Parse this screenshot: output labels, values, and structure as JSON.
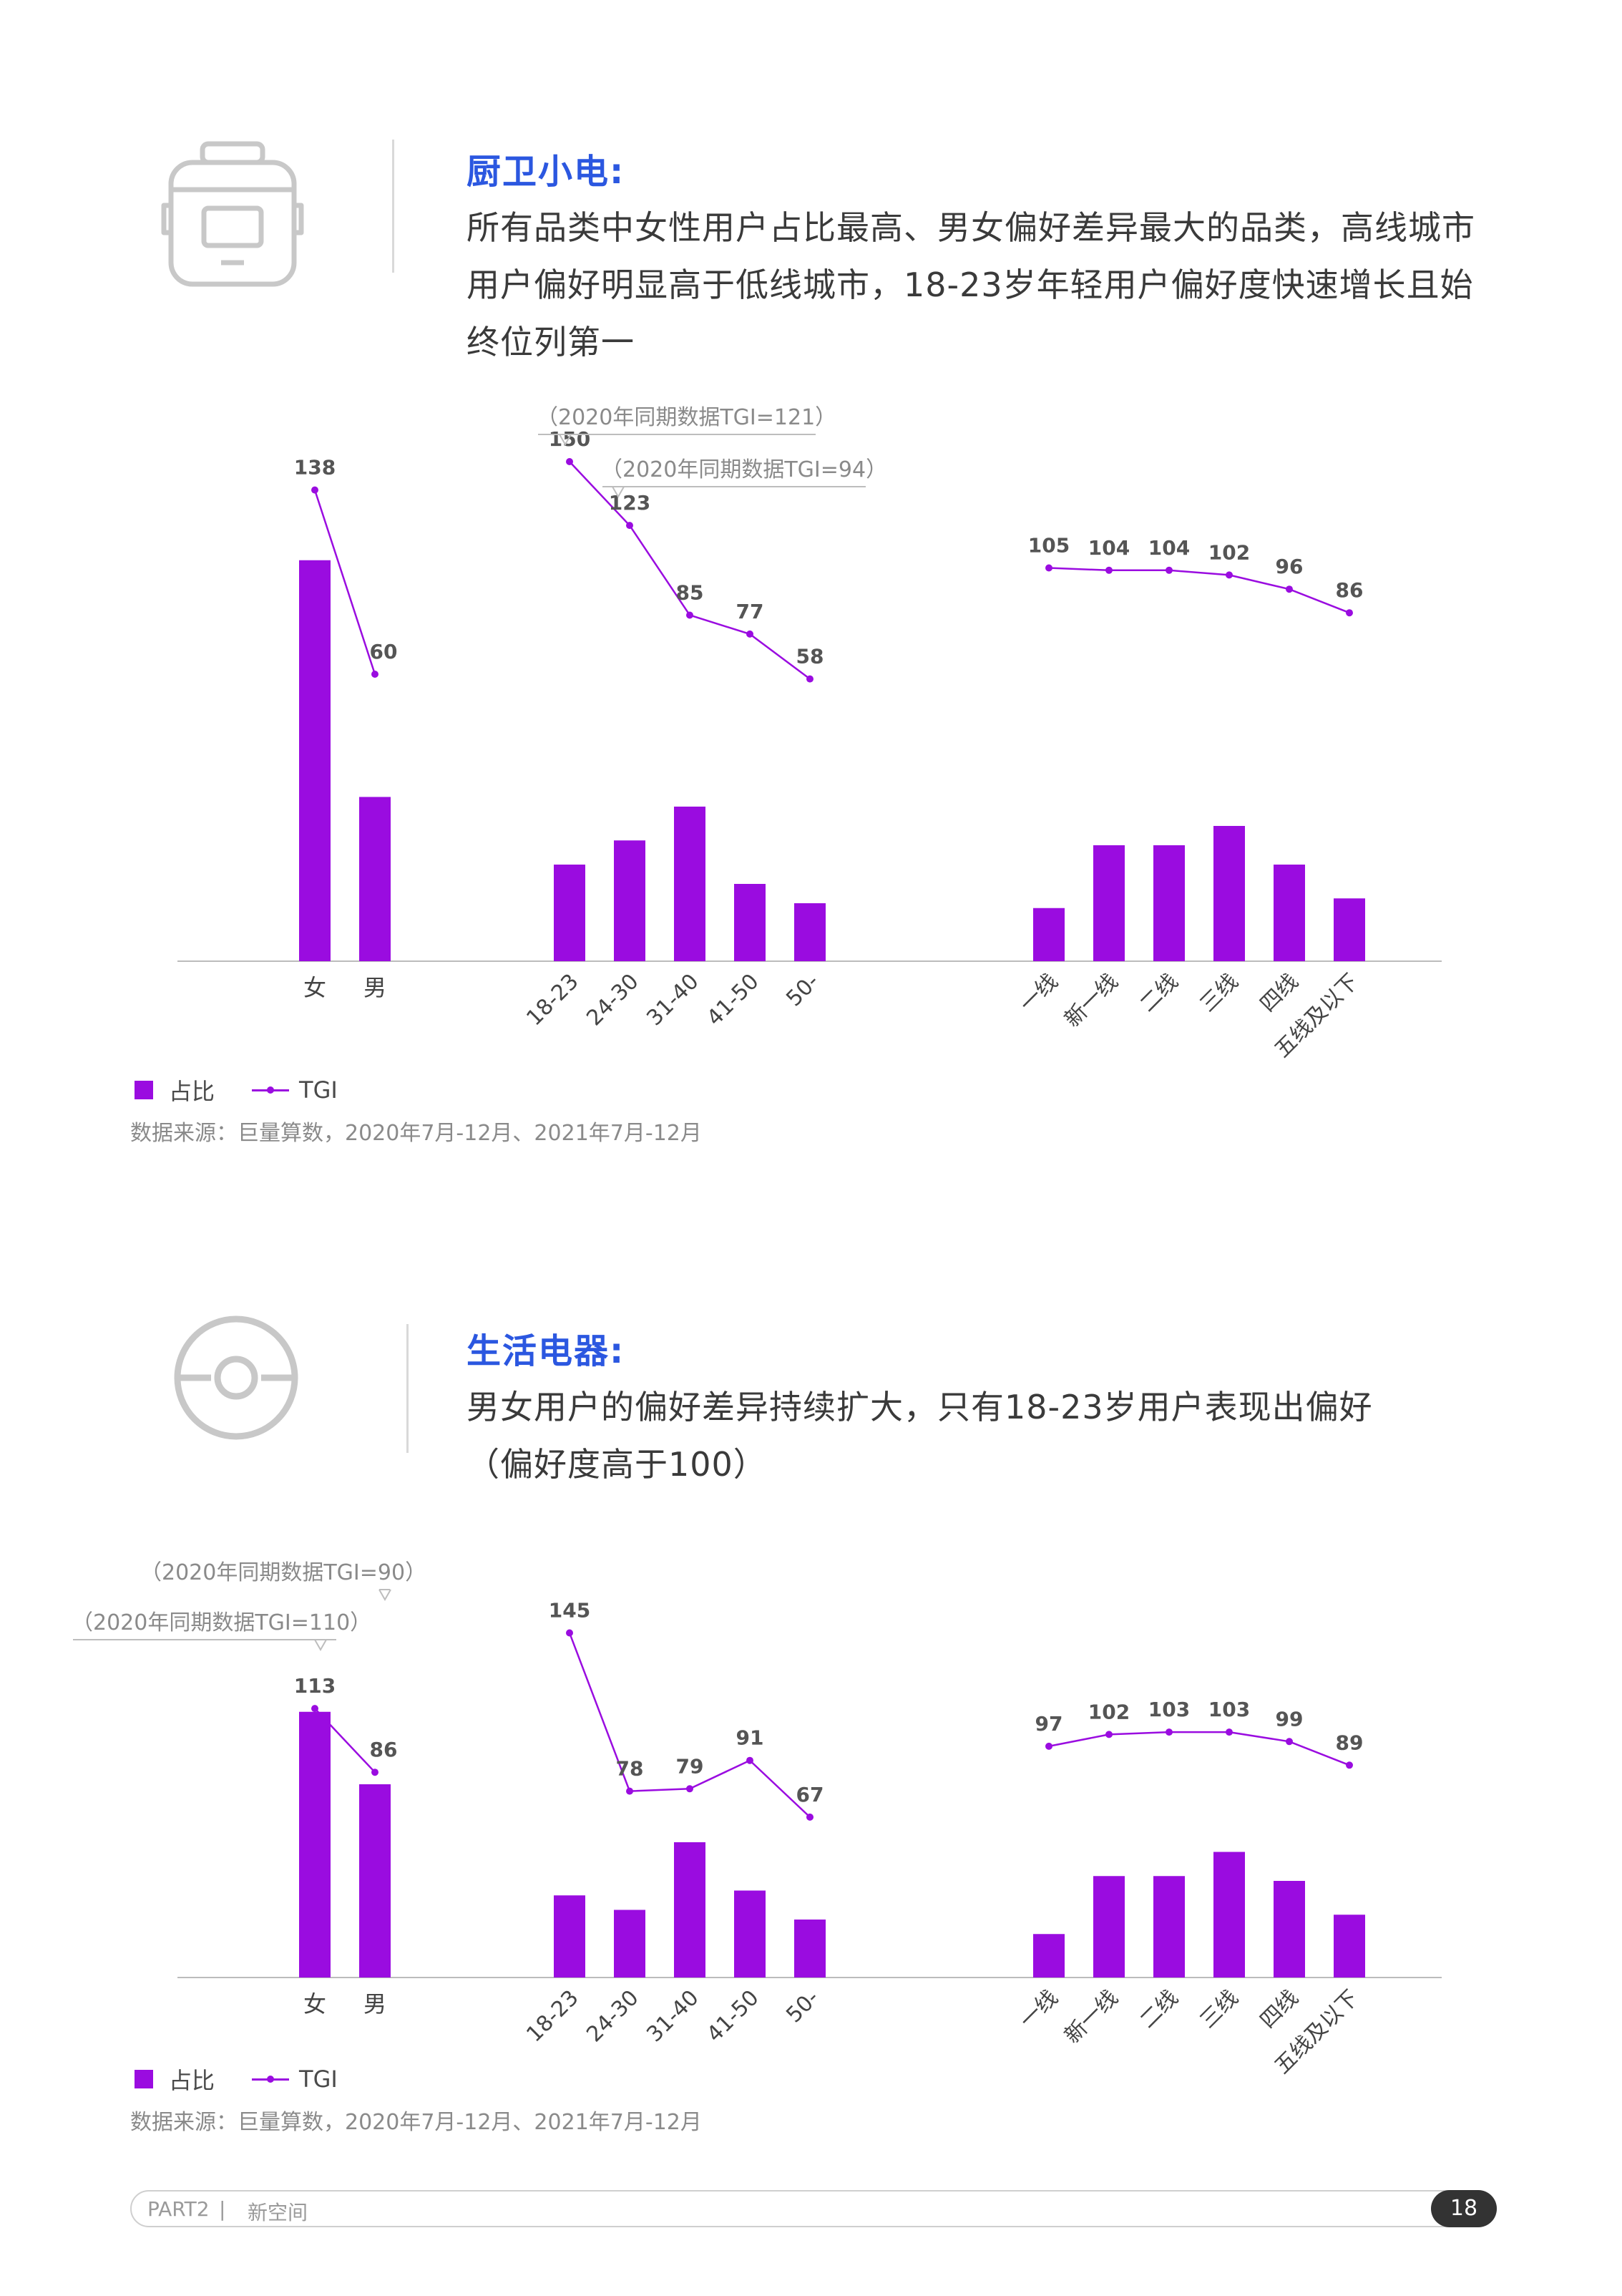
{
  "sections": [
    {
      "title": "厨卫小电:",
      "desc": [
        "所有品类中女性用户占比最高、男女偏好差异最大的品类，高线城市",
        "用户偏好明显高于低线城市，18-23岁年轻用户偏好度快速增长且始",
        "终位列第一"
      ],
      "icon": "rice-cooker-icon",
      "legend": {
        "bar": "占比",
        "line": "TGI"
      },
      "source": "数据来源：巨量算数，2020年7月-12月、2021年7月-12月"
    },
    {
      "title": "生活电器:",
      "desc": [
        "男女用户的偏好差异持续扩大，只有18-23岁用户表现出偏好",
        "（偏好度高于100）"
      ],
      "icon": "target-circle-icon",
      "legend": {
        "bar": "占比",
        "line": "TGI"
      },
      "source": "数据来源：巨量算数，2020年7月-12月、2021年7月-12月"
    }
  ],
  "chart_data": [
    {
      "type": "bar",
      "title": "",
      "color": "#9a0ce0",
      "groups": [
        {
          "name": "性别",
          "categories": [
            "女",
            "男"
          ],
          "share": [
            83,
            34
          ],
          "tgi": [
            138,
            60
          ]
        },
        {
          "name": "年龄",
          "categories": [
            "18-23",
            "24-30",
            "31-40",
            "41-50",
            "50-"
          ],
          "share": [
            20,
            25,
            32,
            16,
            12
          ],
          "tgi": [
            150,
            123,
            85,
            77,
            58
          ]
        },
        {
          "name": "城市线级",
          "categories": [
            "一线",
            "新一线",
            "二线",
            "三线",
            "四线",
            "五线及以下"
          ],
          "share": [
            11,
            24,
            24,
            28,
            20,
            13
          ],
          "tgi": [
            105,
            104,
            104,
            102,
            96,
            86
          ]
        }
      ],
      "annotations": [
        {
          "text": "（2020年同期数据TGI=121）",
          "group": 1,
          "index": 0
        },
        {
          "text": "（2020年同期数据TGI=94）",
          "group": 1,
          "index": 1
        }
      ],
      "series": [
        {
          "name": "占比",
          "type": "bar"
        },
        {
          "name": "TGI",
          "type": "line"
        }
      ]
    },
    {
      "type": "bar",
      "title": "",
      "color": "#9a0ce0",
      "groups": [
        {
          "name": "性别",
          "categories": [
            "女",
            "男"
          ],
          "share": [
            55,
            40
          ],
          "tgi": [
            113,
            86
          ]
        },
        {
          "name": "年龄",
          "categories": [
            "18-23",
            "24-30",
            "31-40",
            "41-50",
            "50-"
          ],
          "share": [
            17,
            14,
            28,
            18,
            12
          ],
          "tgi": [
            145,
            78,
            79,
            91,
            67
          ]
        },
        {
          "name": "城市线级",
          "categories": [
            "一线",
            "新一线",
            "二线",
            "三线",
            "四线",
            "五线及以下"
          ],
          "share": [
            9,
            21,
            21,
            26,
            20,
            13
          ],
          "tgi": [
            97,
            102,
            103,
            103,
            99,
            89
          ]
        }
      ],
      "annotations": [
        {
          "text": "（2020年同期数据TGI=90）",
          "group": 0,
          "index": 1
        },
        {
          "text": "（2020年同期数据TGI=110）",
          "group": 0,
          "index": 0
        }
      ],
      "series": [
        {
          "name": "占比",
          "type": "bar"
        },
        {
          "name": "TGI",
          "type": "line"
        }
      ]
    }
  ],
  "footer": {
    "part": "PART2",
    "separator": "|",
    "space": "新空间",
    "page": "18"
  }
}
